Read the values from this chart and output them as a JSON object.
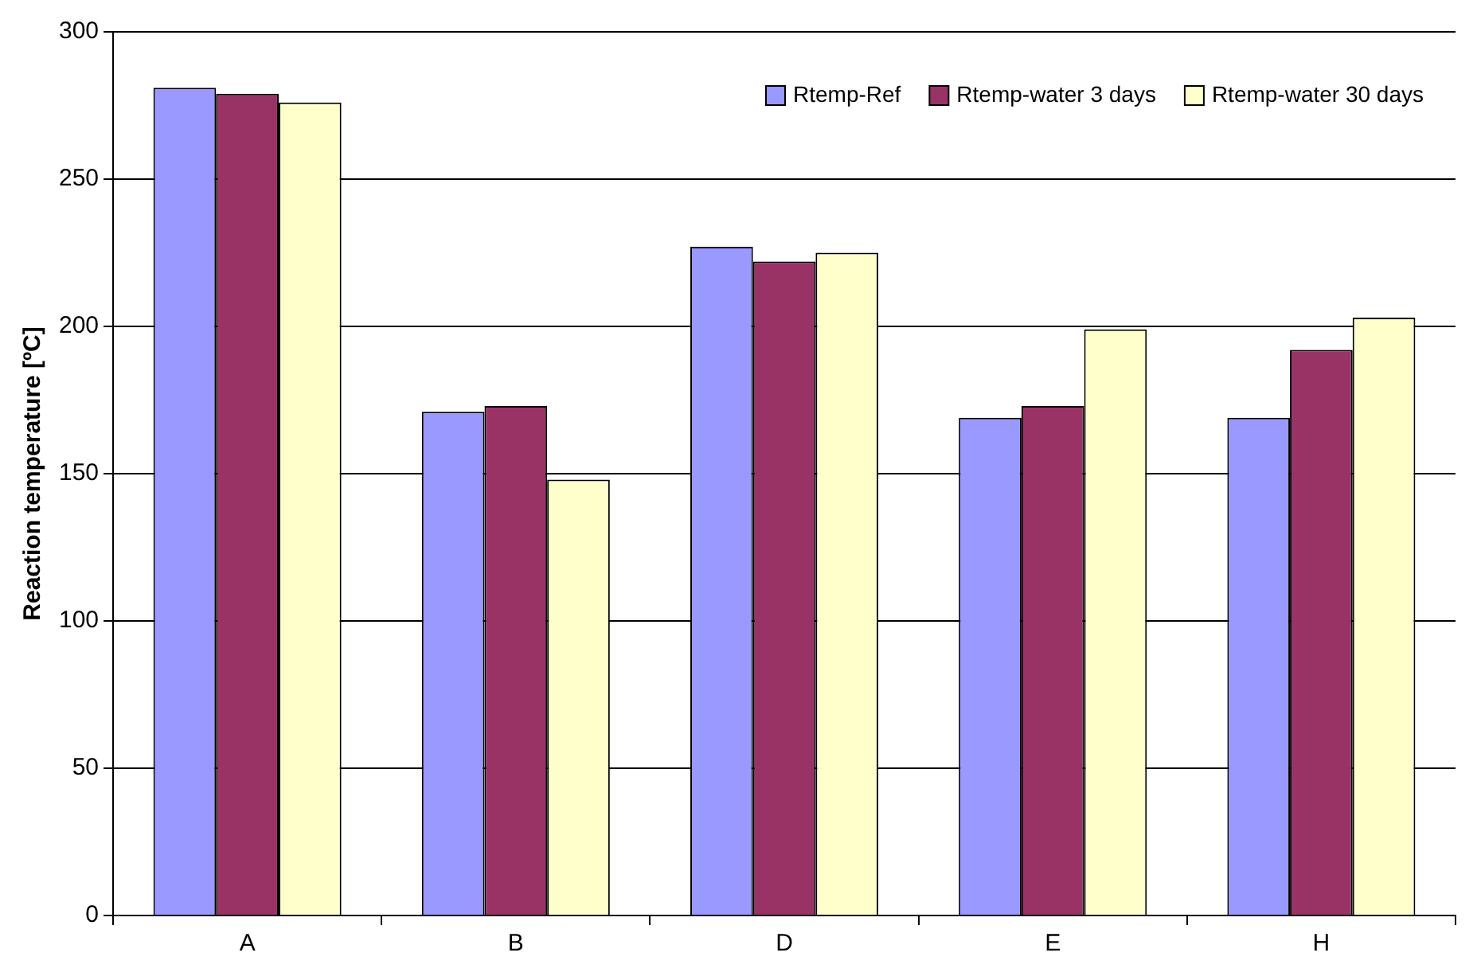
{
  "chart_data": {
    "type": "bar",
    "ylabel": "Reaction temperature [ºC]",
    "categories": [
      "A",
      "B",
      "D",
      "E",
      "H"
    ],
    "series": [
      {
        "name": "Rtemp-Ref",
        "color": "#9999ff",
        "values": [
          281,
          171,
          227,
          169,
          169
        ]
      },
      {
        "name": "Rtemp-water 3 days",
        "color": "#993366",
        "values": [
          279,
          173,
          222,
          173,
          192
        ]
      },
      {
        "name": "Rtemp-water 30 days",
        "color": "#ffffcc",
        "values": [
          276,
          148,
          225,
          199,
          203
        ]
      }
    ],
    "ylim": [
      0,
      300
    ],
    "yticks": [
      0,
      50,
      100,
      150,
      200,
      250,
      300
    ],
    "grid": "y",
    "legend": "top right"
  }
}
